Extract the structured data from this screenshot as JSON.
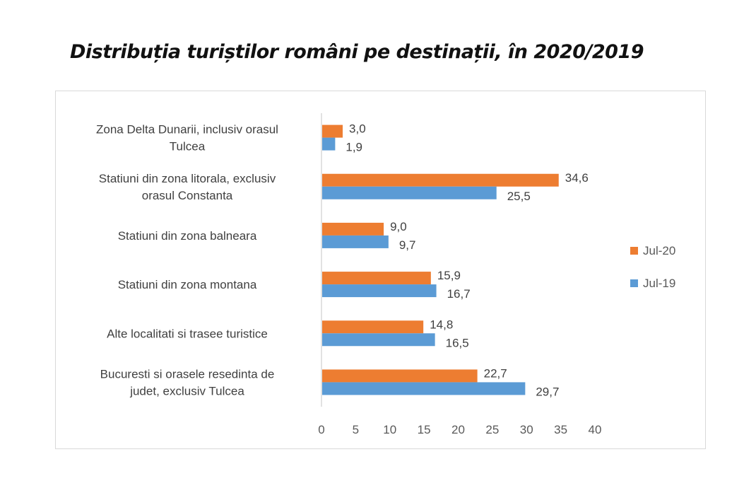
{
  "chart_data": {
    "type": "bar",
    "orientation": "horizontal",
    "title": "Distribuția turiștilor români pe destinații, în 2020/2019",
    "xlabel": "",
    "ylabel": "",
    "xlim": [
      0,
      40
    ],
    "xticks": [
      "0",
      "5",
      "10",
      "15",
      "20",
      "25",
      "30",
      "35",
      "40"
    ],
    "grid": false,
    "legend_position": "right",
    "categories": [
      [
        "Zona Delta Dunarii, inclusiv orasul",
        "Tulcea"
      ],
      [
        "Statiuni din zona litorala, exclusiv",
        "orasul Constanta"
      ],
      [
        "Statiuni din zona balneara"
      ],
      [
        "Statiuni din zona montana"
      ],
      [
        "Alte localitati si trasee turistice"
      ],
      [
        "Bucuresti si orasele resedinta de",
        "judet, exclusiv Tulcea"
      ]
    ],
    "series": [
      {
        "name": "Jul-20",
        "color": "#ed7d31",
        "values": [
          3.0,
          34.6,
          9.0,
          15.9,
          14.8,
          22.7
        ],
        "labels": [
          "3,0",
          "34,6",
          "9,0",
          "15,9",
          "14,8",
          "22,7"
        ]
      },
      {
        "name": "Jul-19",
        "color": "#5b9bd5",
        "values": [
          1.9,
          25.5,
          9.7,
          16.7,
          16.5,
          29.7
        ],
        "labels": [
          "1,9",
          "25,5",
          "9,7",
          "16,7",
          "16,5",
          "29,7"
        ]
      }
    ]
  }
}
